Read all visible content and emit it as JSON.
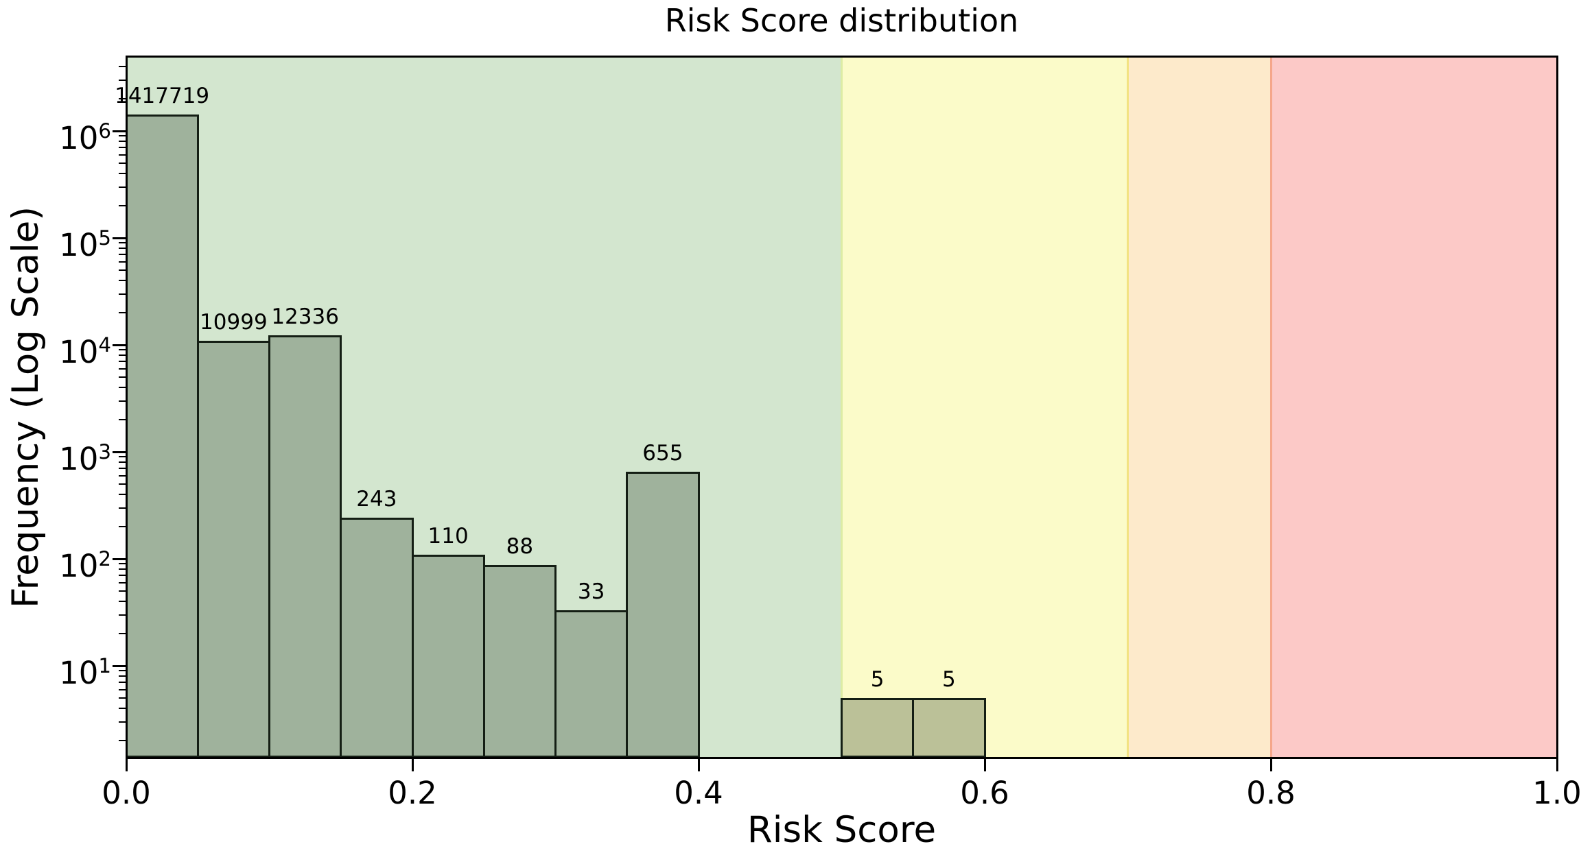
{
  "title": "Risk Score distribution",
  "chart_data": {
    "type": "bar",
    "subtype": "histogram",
    "title": "Risk Score distribution",
    "xlabel": "Risk Score",
    "ylabel": "Frequency (Log Scale)",
    "x_scale": "linear",
    "y_scale": "log",
    "xlim": [
      0,
      1
    ],
    "ylim": [
      1.38,
      5000000
    ],
    "grid": false,
    "legend": "none",
    "bin_width": 0.05,
    "bin_edges": [
      0,
      0.05,
      0.1,
      0.15,
      0.2,
      0.25,
      0.3,
      0.35,
      0.4,
      0.45,
      0.5,
      0.55,
      0.6,
      0.65,
      0.7,
      0.75,
      0.8,
      0.85,
      0.9,
      0.95,
      1.0
    ],
    "counts": [
      1417719,
      10999,
      12336,
      243,
      110,
      88,
      33,
      655,
      0,
      0,
      5,
      5,
      0,
      0,
      0,
      0,
      0,
      0,
      0,
      0
    ],
    "bar_labels": [
      "1417719",
      "10999",
      "12336",
      "243",
      "110",
      "88",
      "33",
      "655",
      "",
      "",
      "5",
      "5",
      "",
      "",
      "",
      "",
      "",
      "",
      "",
      ""
    ],
    "x_ticks": [
      {
        "value": 0.0,
        "label": "0.0"
      },
      {
        "value": 0.2,
        "label": "0.2"
      },
      {
        "value": 0.4,
        "label": "0.4"
      },
      {
        "value": 0.6,
        "label": "0.6"
      },
      {
        "value": 0.8,
        "label": "0.8"
      },
      {
        "value": 1.0,
        "label": "1.0"
      }
    ],
    "y_ticks": [
      {
        "exponent": 1,
        "label": "10^1"
      },
      {
        "exponent": 2,
        "label": "10^2"
      },
      {
        "exponent": 3,
        "label": "10^3"
      },
      {
        "exponent": 4,
        "label": "10^4"
      },
      {
        "exponent": 5,
        "label": "10^5"
      },
      {
        "exponent": 6,
        "label": "10^6"
      }
    ],
    "bands": [
      {
        "name": "green-zone",
        "x0": 0.0,
        "x1": 0.5,
        "color": "#d3e6cf"
      },
      {
        "name": "yellow-zone",
        "x0": 0.5,
        "x1": 0.7,
        "color": "#fbfbc9"
      },
      {
        "name": "orange-zone",
        "x0": 0.7,
        "x1": 0.8,
        "color": "#fdeacb"
      },
      {
        "name": "red-zone",
        "x0": 0.8,
        "x1": 1.0,
        "color": "#fcc9c7"
      }
    ],
    "band_dividers": [
      {
        "x": 0.5,
        "color": "#dcecA5"
      },
      {
        "x": 0.7,
        "color": "#f2e282"
      },
      {
        "x": 0.8,
        "color": "#f5a68a"
      }
    ],
    "colors": {
      "bar_fill": "rgba(40,60,40,0.30)",
      "bar_edge": "#141e14",
      "background": "#ffffff",
      "spine": "#000000",
      "text": "#000000"
    }
  }
}
